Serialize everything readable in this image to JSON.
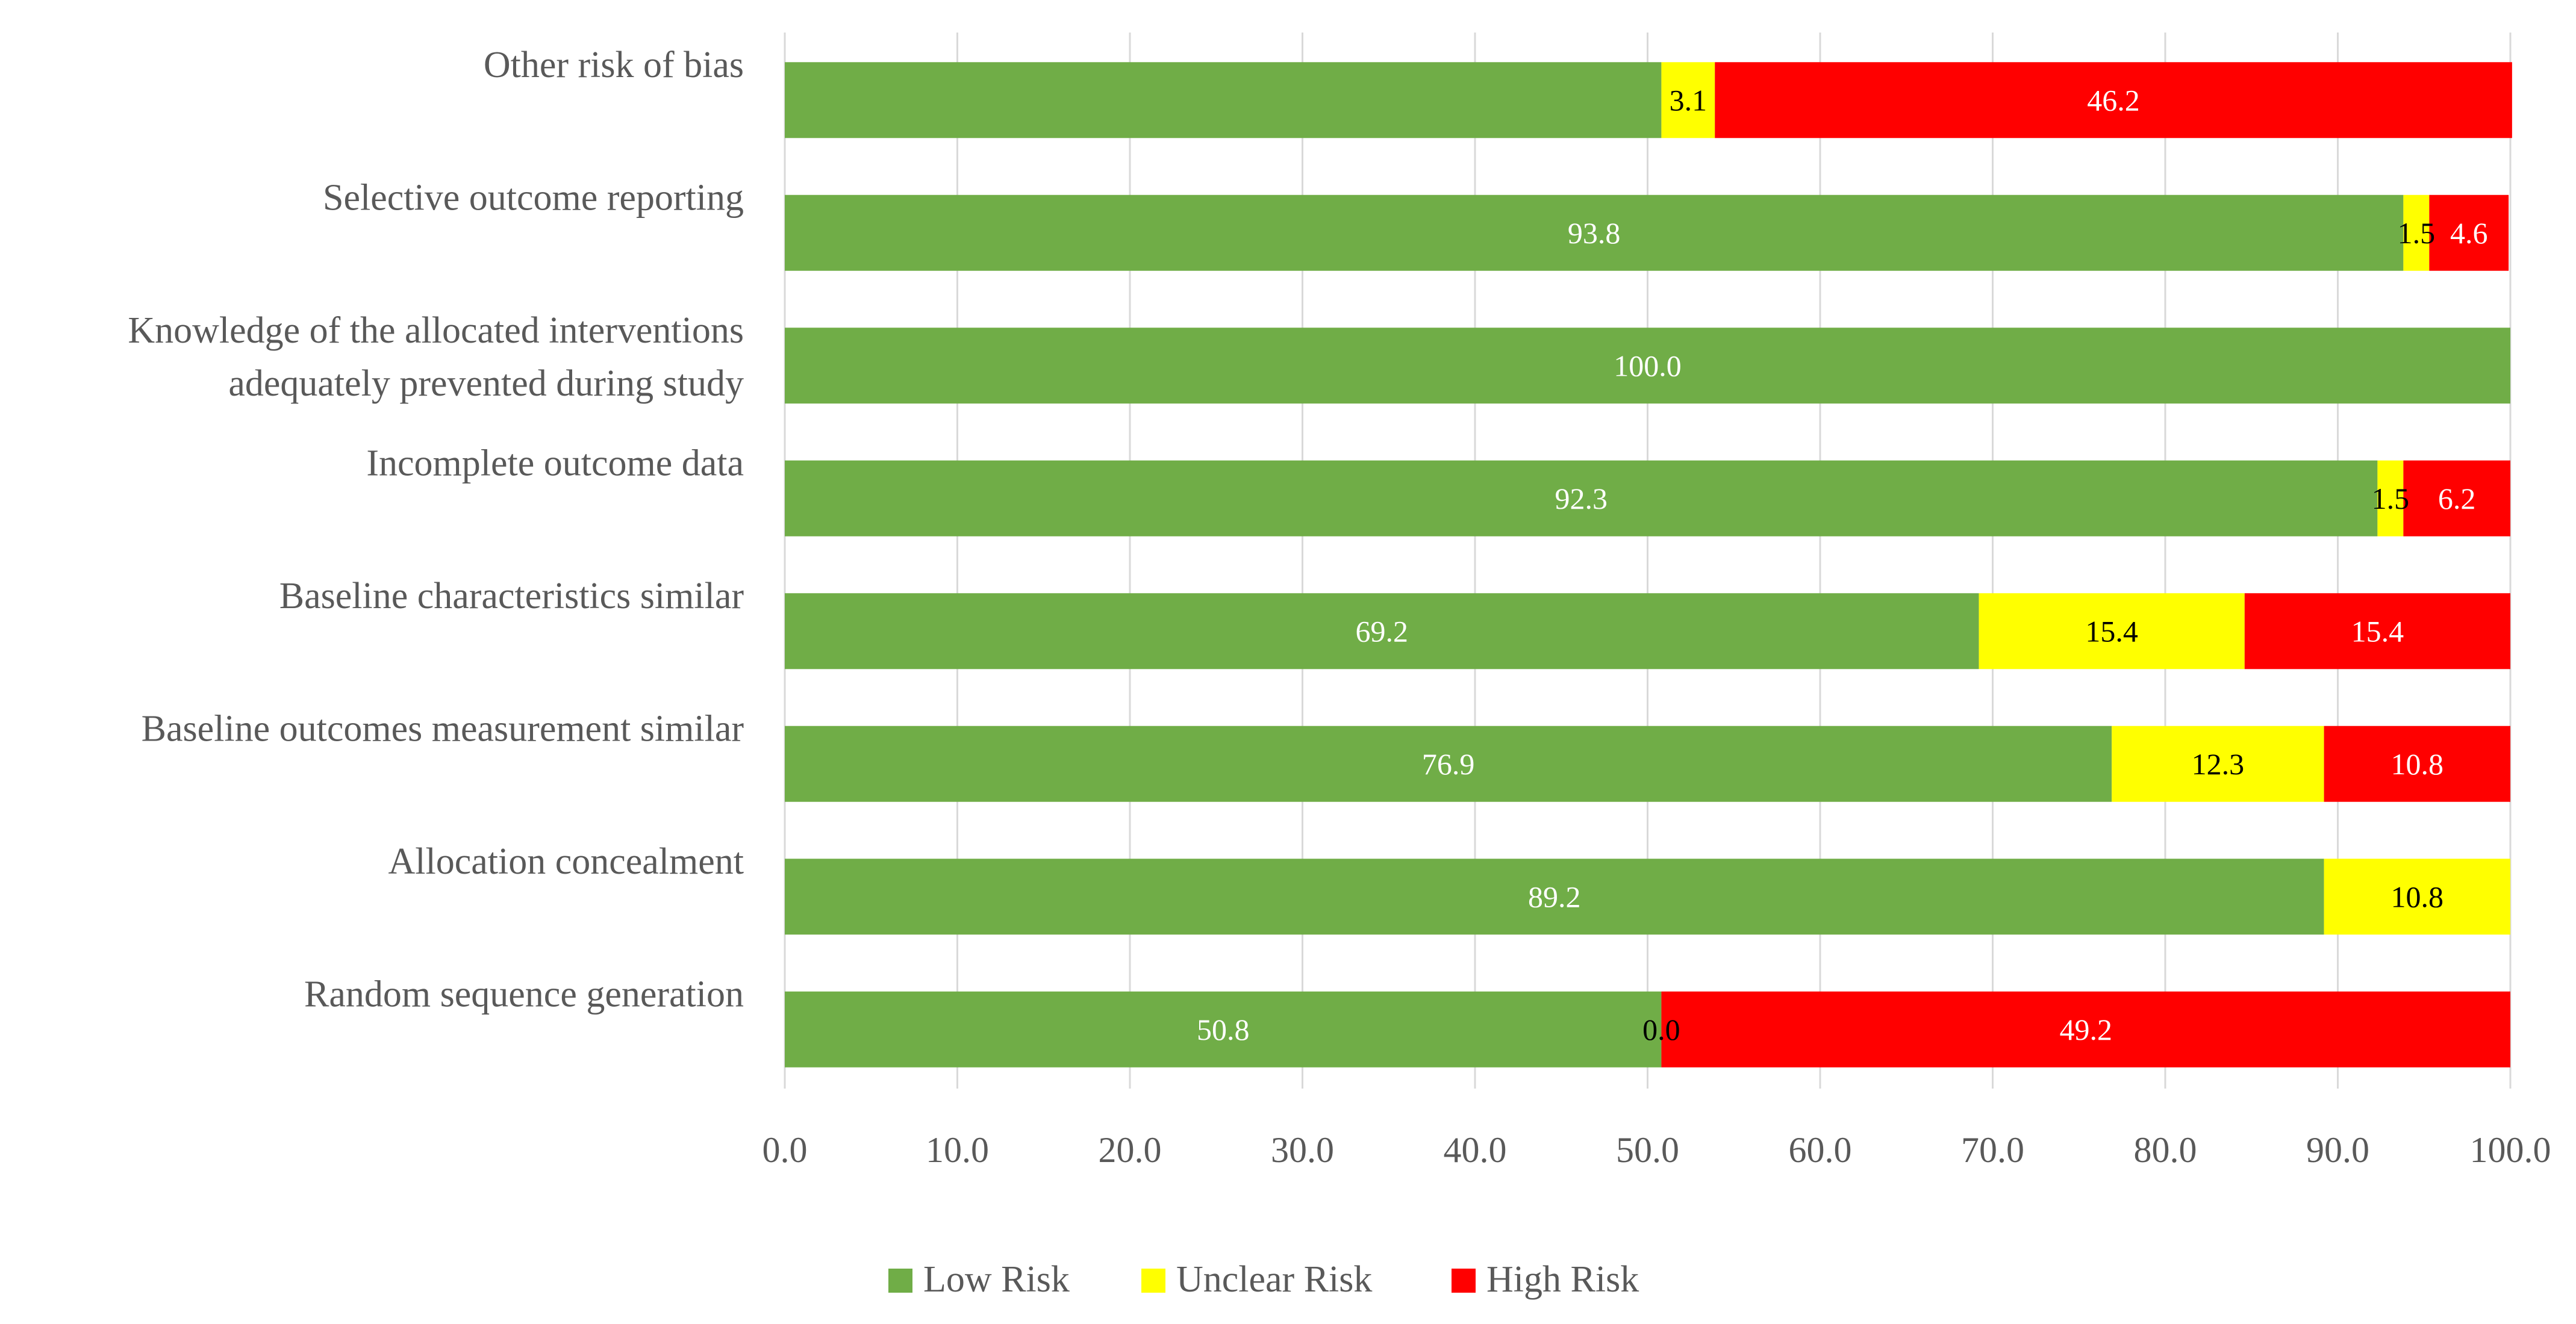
{
  "chart_data": {
    "type": "bar",
    "orientation": "horizontal",
    "stacked": true,
    "title": "",
    "xlabel": "",
    "ylabel": "",
    "xlim": [
      0,
      100
    ],
    "x_ticks": [
      "0.0",
      "10.0",
      "20.0",
      "30.0",
      "40.0",
      "50.0",
      "60.0",
      "70.0",
      "80.0",
      "90.0",
      "100.0"
    ],
    "x_tick_values": [
      0,
      10,
      20,
      30,
      40,
      50,
      60,
      70,
      80,
      90,
      100
    ],
    "grid": true,
    "legend_position": "bottom",
    "categories": [
      [
        "Other risk of bias"
      ],
      [
        "Selective outcome reporting"
      ],
      [
        "Knowledge of the allocated interventions",
        "adequately prevented during study"
      ],
      [
        "Incomplete outcome data"
      ],
      [
        "Baseline characteristics similar"
      ],
      [
        "Baseline outcomes measurement similar"
      ],
      [
        "Allocation concealment"
      ],
      [
        "Random sequence generation"
      ]
    ],
    "series": [
      {
        "name": "Low Risk",
        "color": "#70ad47",
        "label_color": "#ffffff",
        "values": [
          50.8,
          93.8,
          100.0,
          92.3,
          69.2,
          76.9,
          89.2,
          50.8
        ],
        "labels": [
          "",
          "93.8",
          "100.0",
          "92.3",
          "69.2",
          "76.9",
          "89.2",
          "50.8"
        ]
      },
      {
        "name": "Unclear Risk",
        "color": "#ffff00",
        "label_color": "#000000",
        "values": [
          3.1,
          1.5,
          0,
          1.5,
          15.4,
          12.3,
          10.8,
          0.0
        ],
        "labels": [
          "3.1",
          "1.5",
          "",
          "1.5",
          "15.4",
          "12.3",
          "10.8",
          "0.0"
        ]
      },
      {
        "name": "High Risk",
        "color": "#ff0000",
        "label_color": "#ffffff",
        "values": [
          46.2,
          4.6,
          0,
          6.2,
          15.4,
          10.8,
          0,
          49.2
        ],
        "labels": [
          "46.2",
          "4.6",
          "",
          "6.2",
          "15.4",
          "10.8",
          "",
          "49.2"
        ]
      }
    ]
  }
}
